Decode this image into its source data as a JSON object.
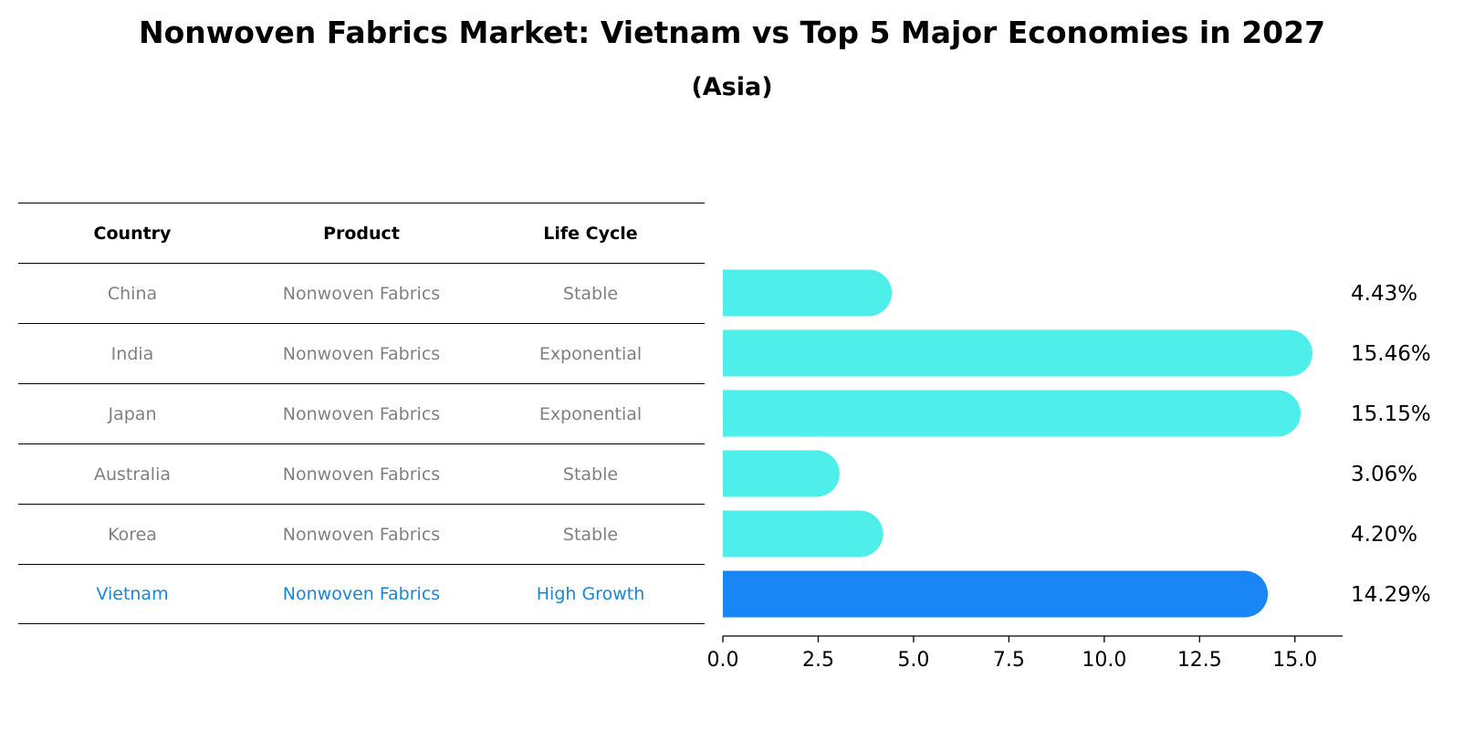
{
  "title": "Nonwoven Fabrics Market: Vietnam vs Top 5 Major Economies in 2027",
  "subtitle": "(Asia)",
  "table": {
    "headers": [
      "Country",
      "Product",
      "Life Cycle"
    ],
    "rows": [
      {
        "country": "China",
        "product": "Nonwoven Fabrics",
        "life_cycle": "Stable"
      },
      {
        "country": "India",
        "product": "Nonwoven Fabrics",
        "life_cycle": "Exponential"
      },
      {
        "country": "Japan",
        "product": "Nonwoven Fabrics",
        "life_cycle": "Exponential"
      },
      {
        "country": "Australia",
        "product": "Nonwoven Fabrics",
        "life_cycle": "Stable"
      },
      {
        "country": "Korea",
        "product": "Nonwoven Fabrics",
        "life_cycle": "Stable"
      },
      {
        "country": "Vietnam",
        "product": "Nonwoven Fabrics",
        "life_cycle": "High Growth"
      }
    ]
  },
  "colors": {
    "bar": "#4eeeea",
    "highlight_bar": "#1a85f5",
    "highlight_text": "#1a85d6",
    "row_text": "#808080"
  },
  "chart_data": {
    "type": "bar",
    "orientation": "horizontal",
    "categories": [
      "China",
      "India",
      "Japan",
      "Australia",
      "Korea",
      "Vietnam"
    ],
    "values": [
      4.43,
      15.46,
      15.15,
      3.06,
      4.2,
      14.29
    ],
    "labels": [
      "4.43%",
      "15.46%",
      "15.15%",
      "3.06%",
      "4.20%",
      "14.29%"
    ],
    "highlight": "Vietnam",
    "xlim": [
      0,
      16.25
    ],
    "xticks": [
      "0.0",
      "2.5",
      "5.0",
      "7.5",
      "10.0",
      "12.5",
      "15.0"
    ],
    "xlabel": "",
    "ylabel": ""
  }
}
